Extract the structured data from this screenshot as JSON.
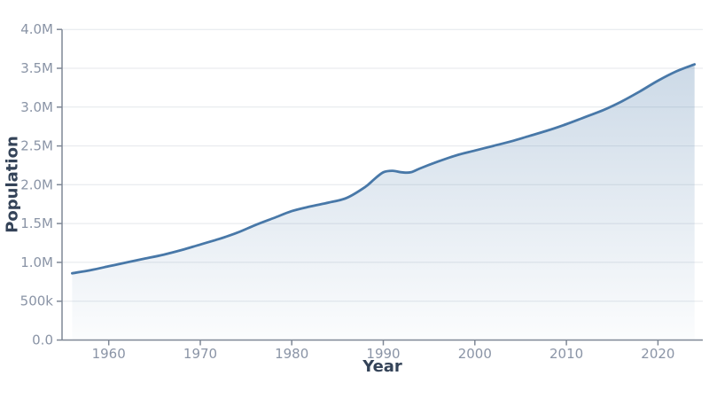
{
  "figure": {
    "background": "#ffffff"
  },
  "chart_data": {
    "type": "area",
    "title": "",
    "xlabel": "Year",
    "ylabel": "Population",
    "x": [
      1956,
      1958,
      1960,
      1962,
      1964,
      1966,
      1968,
      1970,
      1972,
      1974,
      1976,
      1978,
      1980,
      1982,
      1984,
      1986,
      1988,
      1989,
      1990,
      1991,
      1992,
      1993,
      1994,
      1996,
      1998,
      2000,
      2002,
      2004,
      2006,
      2008,
      2010,
      2012,
      2014,
      2016,
      2018,
      2020,
      2022,
      2024
    ],
    "series": [
      {
        "name": "Population",
        "values": [
          860000,
          900000,
          950000,
          1000000,
          1050000,
          1100000,
          1160000,
          1230000,
          1300000,
          1380000,
          1480000,
          1570000,
          1660000,
          1720000,
          1770000,
          1830000,
          1970000,
          2070000,
          2160000,
          2180000,
          2160000,
          2160000,
          2210000,
          2300000,
          2380000,
          2440000,
          2500000,
          2560000,
          2630000,
          2700000,
          2780000,
          2870000,
          2960000,
          3070000,
          3200000,
          3340000,
          3460000,
          3550000
        ]
      }
    ],
    "x_tick_years": [
      1960,
      1970,
      1980,
      1990,
      2000,
      2010,
      2020
    ],
    "y_ticks": [
      {
        "value": 0,
        "label": "0.0"
      },
      {
        "value": 500000,
        "label": "500k"
      },
      {
        "value": 1000000,
        "label": "1.0M"
      },
      {
        "value": 1500000,
        "label": "1.5M"
      },
      {
        "value": 2000000,
        "label": "2.0M"
      },
      {
        "value": 2500000,
        "label": "2.5M"
      },
      {
        "value": 3000000,
        "label": "3.0M"
      },
      {
        "value": 3500000,
        "label": "3.5M"
      },
      {
        "value": 4000000,
        "label": "4.0M"
      }
    ],
    "xlim": [
      1954.9,
      2024.9
    ],
    "ylim": [
      0,
      4000000
    ],
    "grid": "horizontal",
    "legend": "none",
    "colors": {
      "line": "#4878a8",
      "fill_top": "rgba(72,120,168,0.28)",
      "fill_bottom": "rgba(72,120,168,0.02)",
      "axis": "#7e8795",
      "gridline": "#e4e7eb",
      "tick_label": "#8a94a6",
      "axis_title": "#344358"
    }
  }
}
